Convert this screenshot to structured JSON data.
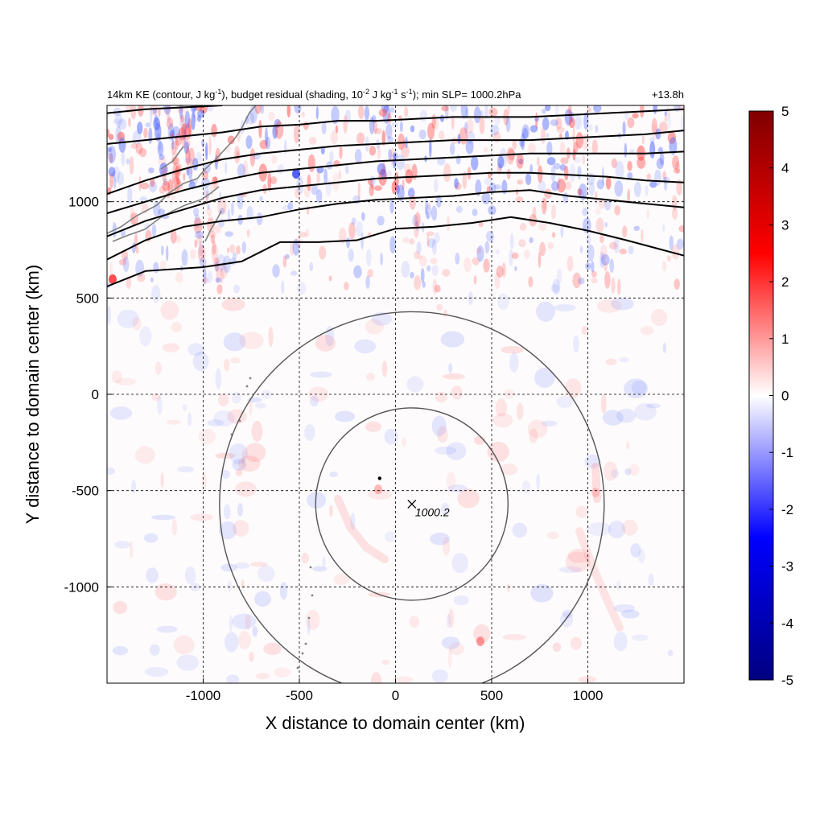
{
  "chart_data": {
    "type": "heatmap",
    "title": {
      "part1": "14km KE (contour, J kg",
      "part1_sup": "-1",
      "part2": "), budget residual (shading, 10",
      "part2_sup": "-2",
      "part3": " J kg",
      "part3_sup": "-1",
      "part4": " s",
      "part4_sup": "-1",
      "part5": "); min SLP= 1000.2hPa"
    },
    "time_label": "+13.8h",
    "xlabel": "X distance to domain center (km)",
    "ylabel": "Y distance to domain center (km)",
    "xlim": [
      -1500,
      1500
    ],
    "ylim": [
      -1500,
      1500
    ],
    "xticks": [
      -1000,
      -500,
      0,
      500,
      1000
    ],
    "yticks": [
      -1000,
      -500,
      0,
      500,
      1000
    ],
    "xtick_labels": [
      "-1000",
      "-500",
      "0",
      "500",
      "1000"
    ],
    "ytick_labels": [
      "-1000",
      "-500",
      "0",
      "500",
      "1000"
    ],
    "grid": true,
    "colorbar": {
      "min": -5,
      "max": 5,
      "ticks": [
        5,
        4,
        3,
        2,
        1,
        0,
        -1,
        -2,
        -3,
        -4,
        -5
      ],
      "tick_labels": [
        "5",
        "4",
        "3",
        "2",
        "1",
        "0",
        "-1",
        "-2",
        "-3",
        "-4",
        "-5"
      ],
      "colors": [
        "#00007f",
        "#0000ff",
        "#ffffff",
        "#ff0000",
        "#7f0000"
      ]
    },
    "storm_center": {
      "x": 85,
      "y": -570,
      "label": "1000.2"
    },
    "range_rings_km": [
      500,
      1000
    ],
    "ke_contours": [
      [
        [
          -1500,
          560
        ],
        [
          -1300,
          640
        ],
        [
          -1000,
          660
        ],
        [
          -800,
          690
        ],
        [
          -600,
          790
        ],
        [
          -400,
          790
        ],
        [
          -200,
          800
        ],
        [
          0,
          860
        ],
        [
          200,
          870
        ],
        [
          400,
          890
        ],
        [
          600,
          920
        ],
        [
          800,
          890
        ],
        [
          1000,
          850
        ],
        [
          1200,
          800
        ],
        [
          1500,
          720
        ]
      ],
      [
        [
          -1500,
          700
        ],
        [
          -1300,
          800
        ],
        [
          -1100,
          870
        ],
        [
          -900,
          900
        ],
        [
          -700,
          920
        ],
        [
          -500,
          960
        ],
        [
          -300,
          990
        ],
        [
          -100,
          1010
        ],
        [
          100,
          1020
        ],
        [
          300,
          1030
        ],
        [
          500,
          1050
        ],
        [
          700,
          1060
        ],
        [
          900,
          1030
        ],
        [
          1100,
          1010
        ],
        [
          1300,
          990
        ],
        [
          1500,
          970
        ]
      ],
      [
        [
          -1500,
          820
        ],
        [
          -1300,
          900
        ],
        [
          -1100,
          960
        ],
        [
          -900,
          1020
        ],
        [
          -700,
          1060
        ],
        [
          -500,
          1080
        ],
        [
          -300,
          1100
        ],
        [
          -100,
          1120
        ],
        [
          100,
          1130
        ],
        [
          300,
          1140
        ],
        [
          500,
          1150
        ],
        [
          700,
          1150
        ],
        [
          900,
          1140
        ],
        [
          1100,
          1130
        ],
        [
          1300,
          1110
        ],
        [
          1500,
          1100
        ]
      ],
      [
        [
          -1500,
          940
        ],
        [
          -1300,
          1000
        ],
        [
          -1100,
          1060
        ],
        [
          -900,
          1110
        ],
        [
          -700,
          1150
        ],
        [
          -500,
          1170
        ],
        [
          -300,
          1190
        ],
        [
          -100,
          1210
        ],
        [
          100,
          1220
        ],
        [
          300,
          1230
        ],
        [
          500,
          1240
        ],
        [
          700,
          1250
        ],
        [
          900,
          1250
        ],
        [
          1100,
          1250
        ],
        [
          1300,
          1250
        ],
        [
          1500,
          1260
        ]
      ],
      [
        [
          -1500,
          1040
        ],
        [
          -1300,
          1110
        ],
        [
          -1100,
          1170
        ],
        [
          -900,
          1220
        ],
        [
          -700,
          1250
        ],
        [
          -500,
          1270
        ],
        [
          -300,
          1290
        ],
        [
          -100,
          1300
        ],
        [
          100,
          1310
        ],
        [
          300,
          1320
        ],
        [
          500,
          1320
        ],
        [
          700,
          1320
        ],
        [
          900,
          1330
        ],
        [
          1100,
          1340
        ],
        [
          1300,
          1350
        ],
        [
          1500,
          1370
        ]
      ],
      [
        [
          -1500,
          1300
        ],
        [
          -1300,
          1320
        ],
        [
          -1100,
          1340
        ],
        [
          -900,
          1360
        ],
        [
          -700,
          1390
        ],
        [
          -500,
          1400
        ],
        [
          -300,
          1420
        ],
        [
          -100,
          1420
        ],
        [
          100,
          1430
        ],
        [
          300,
          1440
        ],
        [
          500,
          1440
        ],
        [
          700,
          1440
        ],
        [
          900,
          1450
        ],
        [
          1100,
          1460
        ],
        [
          1300,
          1470
        ],
        [
          1500,
          1480
        ]
      ],
      [
        [
          -1500,
          1460
        ],
        [
          -1300,
          1480
        ],
        [
          -1100,
          1490
        ],
        [
          -900,
          1500
        ]
      ]
    ]
  }
}
